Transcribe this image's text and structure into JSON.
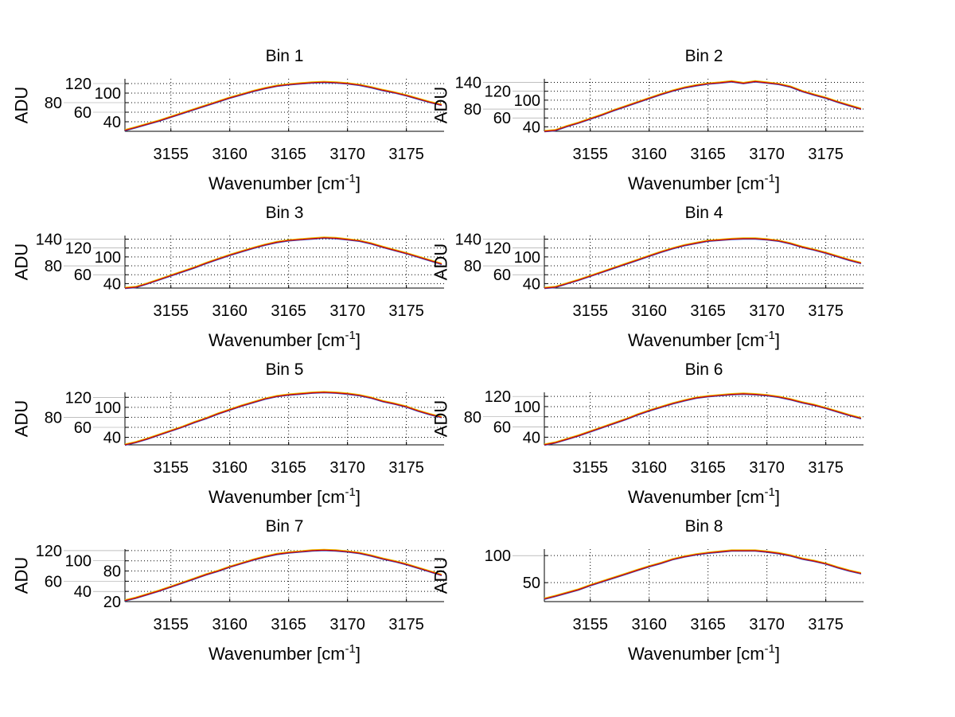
{
  "chart_data": {
    "type": "line",
    "layout": "4x2 subplots",
    "x": [
      3151,
      3152,
      3153,
      3154,
      3155,
      3156,
      3157,
      3158,
      3159,
      3160,
      3161,
      3162,
      3163,
      3164,
      3165,
      3166,
      3167,
      3168,
      3169,
      3170,
      3171,
      3172,
      3173,
      3174,
      3175,
      3176,
      3177,
      3178
    ],
    "xlim": [
      3151.1,
      3178.2
    ],
    "xticks": [
      3155,
      3160,
      3165,
      3170,
      3175
    ],
    "xlabel": "Wavenumber [cm",
    "xlabel_sup": "-1",
    "xlabel_close": "]",
    "ylabel": "ADU",
    "grid": true,
    "line_color": "#d40000",
    "subplots": [
      {
        "title": "Bin 1",
        "ylim": [
          20,
          130
        ],
        "yticks": [
          40,
          60,
          80,
          100,
          120
        ],
        "values": [
          22,
          28,
          35,
          42,
          50,
          58,
          66,
          74,
          82,
          90,
          97,
          104,
          110,
          115,
          118,
          120,
          122,
          123,
          122,
          120,
          117,
          112,
          106,
          101,
          95,
          88,
          81,
          75
        ]
      },
      {
        "title": "Bin 2",
        "ylim": [
          30,
          148
        ],
        "yticks": [
          40,
          60,
          80,
          100,
          120,
          140
        ],
        "values": [
          26,
          32,
          41,
          49,
          58,
          67,
          77,
          86,
          95,
          104,
          113,
          121,
          128,
          133,
          137,
          139,
          142,
          138,
          142,
          139,
          136,
          130,
          120,
          112,
          105,
          96,
          88,
          80
        ]
      },
      {
        "title": "Bin 3",
        "ylim": [
          30,
          148
        ],
        "yticks": [
          40,
          60,
          80,
          100,
          120,
          140
        ],
        "values": [
          26,
          32,
          40,
          49,
          58,
          67,
          76,
          86,
          95,
          104,
          112,
          120,
          127,
          133,
          137,
          139,
          141,
          143,
          142,
          139,
          136,
          130,
          122,
          115,
          108,
          100,
          92,
          84
        ]
      },
      {
        "title": "Bin 4",
        "ylim": [
          30,
          148
        ],
        "yticks": [
          40,
          60,
          80,
          100,
          120,
          140
        ],
        "values": [
          26,
          32,
          40,
          48,
          57,
          66,
          75,
          84,
          93,
          102,
          111,
          119,
          126,
          131,
          136,
          138,
          140,
          141,
          141,
          139,
          136,
          130,
          122,
          116,
          109,
          101,
          93,
          86
        ]
      },
      {
        "title": "Bin 5",
        "ylim": [
          25,
          130
        ],
        "yticks": [
          40,
          60,
          80,
          100,
          120
        ],
        "values": [
          23,
          30,
          37,
          45,
          53,
          61,
          70,
          78,
          87,
          95,
          103,
          110,
          117,
          122,
          125,
          127,
          129,
          130,
          129,
          127,
          124,
          119,
          112,
          107,
          101,
          93,
          86,
          80
        ]
      },
      {
        "title": "Bin 6",
        "ylim": [
          25,
          128
        ],
        "yticks": [
          40,
          60,
          80,
          100,
          120
        ],
        "values": [
          22,
          29,
          36,
          43,
          51,
          59,
          67,
          75,
          84,
          92,
          99,
          106,
          112,
          117,
          120,
          122,
          124,
          125,
          124,
          122,
          119,
          114,
          108,
          103,
          97,
          90,
          83,
          77
        ]
      },
      {
        "title": "Bin 7",
        "ylim": [
          20,
          123
        ],
        "yticks": [
          20,
          40,
          60,
          80,
          100,
          120
        ],
        "values": [
          22,
          27,
          34,
          41,
          49,
          57,
          65,
          73,
          80,
          88,
          95,
          102,
          108,
          113,
          116,
          118,
          120,
          121,
          120,
          118,
          115,
          110,
          104,
          99,
          93,
          86,
          79,
          72
        ]
      },
      {
        "title": "Bin 8",
        "ylim": [
          15,
          112
        ],
        "yticks": [
          50,
          100
        ],
        "values": [
          20,
          25,
          31,
          37,
          45,
          52,
          59,
          66,
          73,
          80,
          86,
          93,
          98,
          102,
          105,
          107,
          109,
          109,
          109,
          107,
          104,
          100,
          94,
          90,
          85,
          78,
          72,
          67
        ]
      }
    ]
  }
}
